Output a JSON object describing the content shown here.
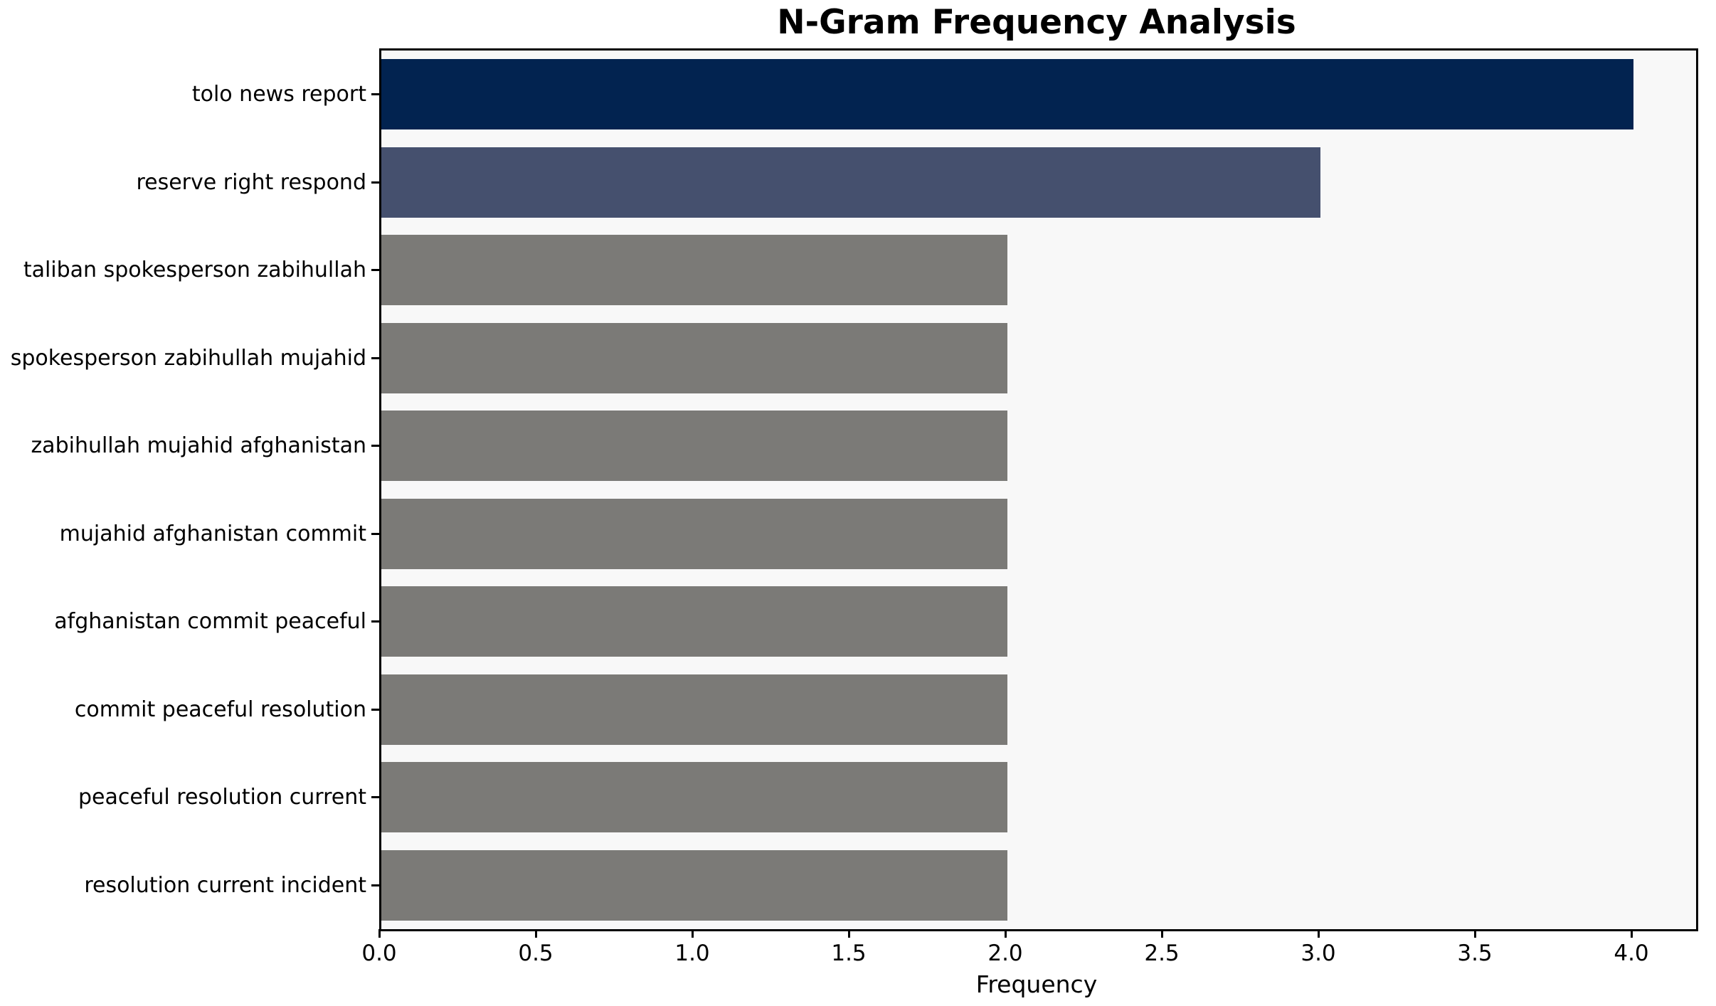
{
  "chart_data": {
    "type": "bar",
    "orientation": "horizontal",
    "title": "N-Gram Frequency Analysis",
    "xlabel": "Frequency",
    "ylabel": "",
    "categories": [
      "tolo news report",
      "reserve right respond",
      "taliban spokesperson zabihullah",
      "spokesperson zabihullah mujahid",
      "zabihullah mujahid afghanistan",
      "mujahid afghanistan commit",
      "afghanistan commit peaceful",
      "commit peaceful resolution",
      "peaceful resolution current",
      "resolution current incident"
    ],
    "values": [
      4,
      3,
      2,
      2,
      2,
      2,
      2,
      2,
      2,
      2
    ],
    "bar_colors": [
      "#022350",
      "#45506e",
      "#7b7a77",
      "#7b7a77",
      "#7b7a77",
      "#7b7a77",
      "#7b7a77",
      "#7b7a77",
      "#7b7a77",
      "#7b7a77"
    ],
    "xlim": [
      0,
      4.2
    ],
    "xticks": [
      0.0,
      0.5,
      1.0,
      1.5,
      2.0,
      2.5,
      3.0,
      3.5,
      4.0
    ],
    "xtick_labels": [
      "0.0",
      "0.5",
      "1.0",
      "1.5",
      "2.0",
      "2.5",
      "3.0",
      "3.5",
      "4.0"
    ],
    "grid": false,
    "legend_position": "none",
    "colors": {
      "plot_background": "#f8f8f8",
      "figure_background": "#ffffff",
      "spine": "#000000",
      "text": "#000000"
    }
  }
}
